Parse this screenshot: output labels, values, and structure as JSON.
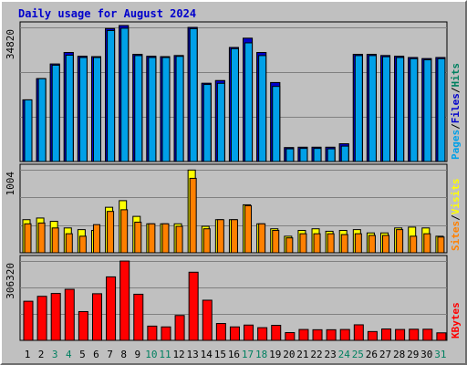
{
  "title": "Daily usage for August 2024",
  "colors": {
    "pages": "#00a0e8",
    "files": "#0000cc",
    "hits": "#008060",
    "visits": "#ffff00",
    "sites": "#ff8000",
    "kbytes": "#ff0000",
    "weekend": "#008060",
    "weekday": "#000000"
  },
  "chart_data": [
    {
      "type": "bar",
      "panel": "hits-files-pages",
      "ymax_label": "34820",
      "ylim": [
        0,
        34820
      ],
      "right_label": [
        "Pages",
        "Files",
        "Hits"
      ],
      "categories": [
        "1",
        "2",
        "3",
        "4",
        "5",
        "6",
        "7",
        "8",
        "9",
        "10",
        "11",
        "12",
        "13",
        "14",
        "15",
        "16",
        "17",
        "18",
        "19",
        "20",
        "21",
        "22",
        "23",
        "24",
        "25",
        "26",
        "27",
        "28",
        "29",
        "30",
        "31"
      ],
      "series": [
        {
          "name": "Hits",
          "values": [
            16000,
            21500,
            25300,
            28300,
            27300,
            27200,
            34500,
            35300,
            27800,
            27300,
            27200,
            27500,
            34800,
            20300,
            21000,
            29600,
            32000,
            28300,
            20500,
            3600,
            3700,
            3700,
            3700,
            4600,
            27800,
            27800,
            27500,
            27300,
            27000,
            26700,
            27000
          ]
        },
        {
          "name": "Files",
          "values": [
            16000,
            21500,
            25300,
            28300,
            27300,
            27200,
            34500,
            35300,
            27800,
            27300,
            27200,
            27500,
            34800,
            20300,
            21000,
            29600,
            32000,
            28300,
            20500,
            3600,
            3700,
            3700,
            3700,
            4600,
            27800,
            27800,
            27500,
            27300,
            27000,
            26700,
            27000
          ]
        },
        {
          "name": "Pages",
          "values": [
            16000,
            21500,
            25000,
            27600,
            27000,
            27000,
            34000,
            34600,
            27500,
            27000,
            27000,
            27300,
            34500,
            20000,
            20300,
            29300,
            30800,
            27500,
            19500,
            3300,
            3400,
            3400,
            3300,
            4000,
            27500,
            27500,
            27200,
            27000,
            26700,
            26400,
            26700
          ]
        }
      ]
    },
    {
      "type": "bar",
      "panel": "visits-sites",
      "ymax_label": "1004",
      "ylim": [
        0,
        1004
      ],
      "right_label": [
        "Sites",
        "Visits"
      ],
      "categories": [
        "1",
        "2",
        "3",
        "4",
        "5",
        "6",
        "7",
        "8",
        "9",
        "10",
        "11",
        "12",
        "13",
        "14",
        "15",
        "16",
        "17",
        "18",
        "19",
        "20",
        "21",
        "22",
        "23",
        "24",
        "25",
        "26",
        "27",
        "28",
        "29",
        "30",
        "31"
      ],
      "series": [
        {
          "name": "Visits",
          "values": [
            400,
            420,
            380,
            300,
            280,
            270,
            550,
            630,
            440,
            350,
            350,
            350,
            1000,
            320,
            400,
            400,
            580,
            350,
            290,
            200,
            270,
            290,
            260,
            270,
            280,
            240,
            240,
            300,
            310,
            300,
            200
          ]
        },
        {
          "name": "Sites",
          "values": [
            350,
            360,
            300,
            230,
            200,
            340,
            500,
            520,
            370,
            350,
            350,
            320,
            900,
            290,
            400,
            400,
            570,
            350,
            270,
            180,
            230,
            230,
            230,
            220,
            230,
            210,
            210,
            280,
            200,
            230,
            190
          ]
        }
      ]
    },
    {
      "type": "bar",
      "panel": "kbytes",
      "ymax_label": "306320",
      "ylim": [
        0,
        306320
      ],
      "right_label": [
        "KBytes"
      ],
      "categories": [
        "1",
        "2",
        "3",
        "4",
        "5",
        "6",
        "7",
        "8",
        "9",
        "10",
        "11",
        "12",
        "13",
        "14",
        "15",
        "16",
        "17",
        "18",
        "19",
        "20",
        "21",
        "22",
        "23",
        "24",
        "25",
        "26",
        "27",
        "28",
        "29",
        "30",
        "31"
      ],
      "series": [
        {
          "name": "KBytes",
          "values": [
            151000,
            170000,
            181000,
            197000,
            111000,
            180000,
            245000,
            306000,
            178000,
            55000,
            52000,
            96000,
            263000,
            155000,
            65000,
            52000,
            59000,
            49000,
            58000,
            30000,
            42000,
            41000,
            41000,
            42000,
            60000,
            34000,
            44000,
            42000,
            43000,
            43000,
            29000
          ]
        }
      ]
    }
  ]
}
